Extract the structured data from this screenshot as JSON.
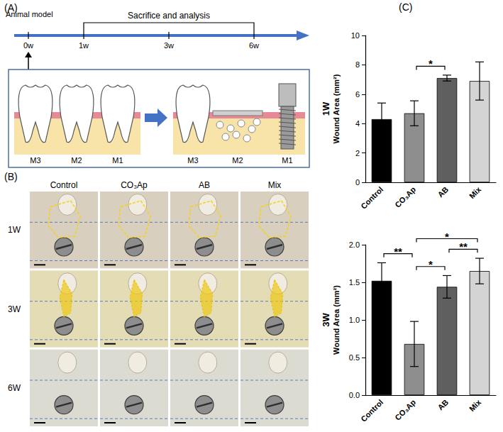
{
  "panels": {
    "A": {
      "letter": "(A)",
      "timeline": {
        "start_label": "Animal model",
        "phase_label": "Sacrifice and analysis",
        "ticks": [
          "0w",
          "1w",
          "3w",
          "6w"
        ]
      },
      "before": {
        "teeth": [
          "M3",
          "M2",
          "M1"
        ]
      },
      "after": {
        "teeth": [
          "M3",
          "M2",
          "M1"
        ]
      }
    },
    "B": {
      "letter": "(B)",
      "columns": [
        "Control",
        "CO₃Ap",
        "AB",
        "Mix"
      ],
      "rows": [
        "1W",
        "3W",
        "6W"
      ]
    },
    "C": {
      "letter": "(C)"
    }
  },
  "chart_data": [
    {
      "type": "bar",
      "title": "1W",
      "y_label": "Wound Area (mm²)",
      "categories": [
        "Control",
        "CO₃Ap",
        "AB",
        "Mix"
      ],
      "values": [
        4.3,
        4.7,
        7.1,
        6.9
      ],
      "errors": [
        1.1,
        0.85,
        0.2,
        1.3
      ],
      "colors": [
        "#000000",
        "#8e8e8e",
        "#5f5f5f",
        "#d4d4d4"
      ],
      "ylim": [
        0,
        10
      ],
      "yticks": [
        0,
        2,
        4,
        6,
        8,
        10
      ],
      "grid": false,
      "significance": [
        {
          "from": "CO₃Ap",
          "to": "AB",
          "label": "*"
        }
      ]
    },
    {
      "type": "bar",
      "title": "3W",
      "y_label": "Wound Area (mm²)",
      "categories": [
        "Control",
        "CO₃Ap",
        "AB",
        "Mix"
      ],
      "values": [
        1.52,
        0.68,
        1.44,
        1.65
      ],
      "errors": [
        0.24,
        0.3,
        0.15,
        0.17
      ],
      "colors": [
        "#000000",
        "#8e8e8e",
        "#5f5f5f",
        "#d4d4d4"
      ],
      "ylim": [
        0,
        2
      ],
      "yticks": [
        {
          "value": 0,
          "label": "0.0"
        },
        0.5,
        {
          "value": 1,
          "label": "1.0"
        },
        1.5,
        {
          "value": 2,
          "label": "2.0"
        }
      ],
      "grid": false,
      "significance": [
        {
          "from": "Control",
          "to": "CO₃Ap",
          "label": "**"
        },
        {
          "from": "CO₃Ap",
          "to": "AB",
          "label": "*"
        },
        {
          "from": "AB",
          "to": "Mix",
          "label": "**"
        },
        {
          "from": "CO₃Ap",
          "to": "Mix",
          "label": "*"
        }
      ]
    }
  ]
}
